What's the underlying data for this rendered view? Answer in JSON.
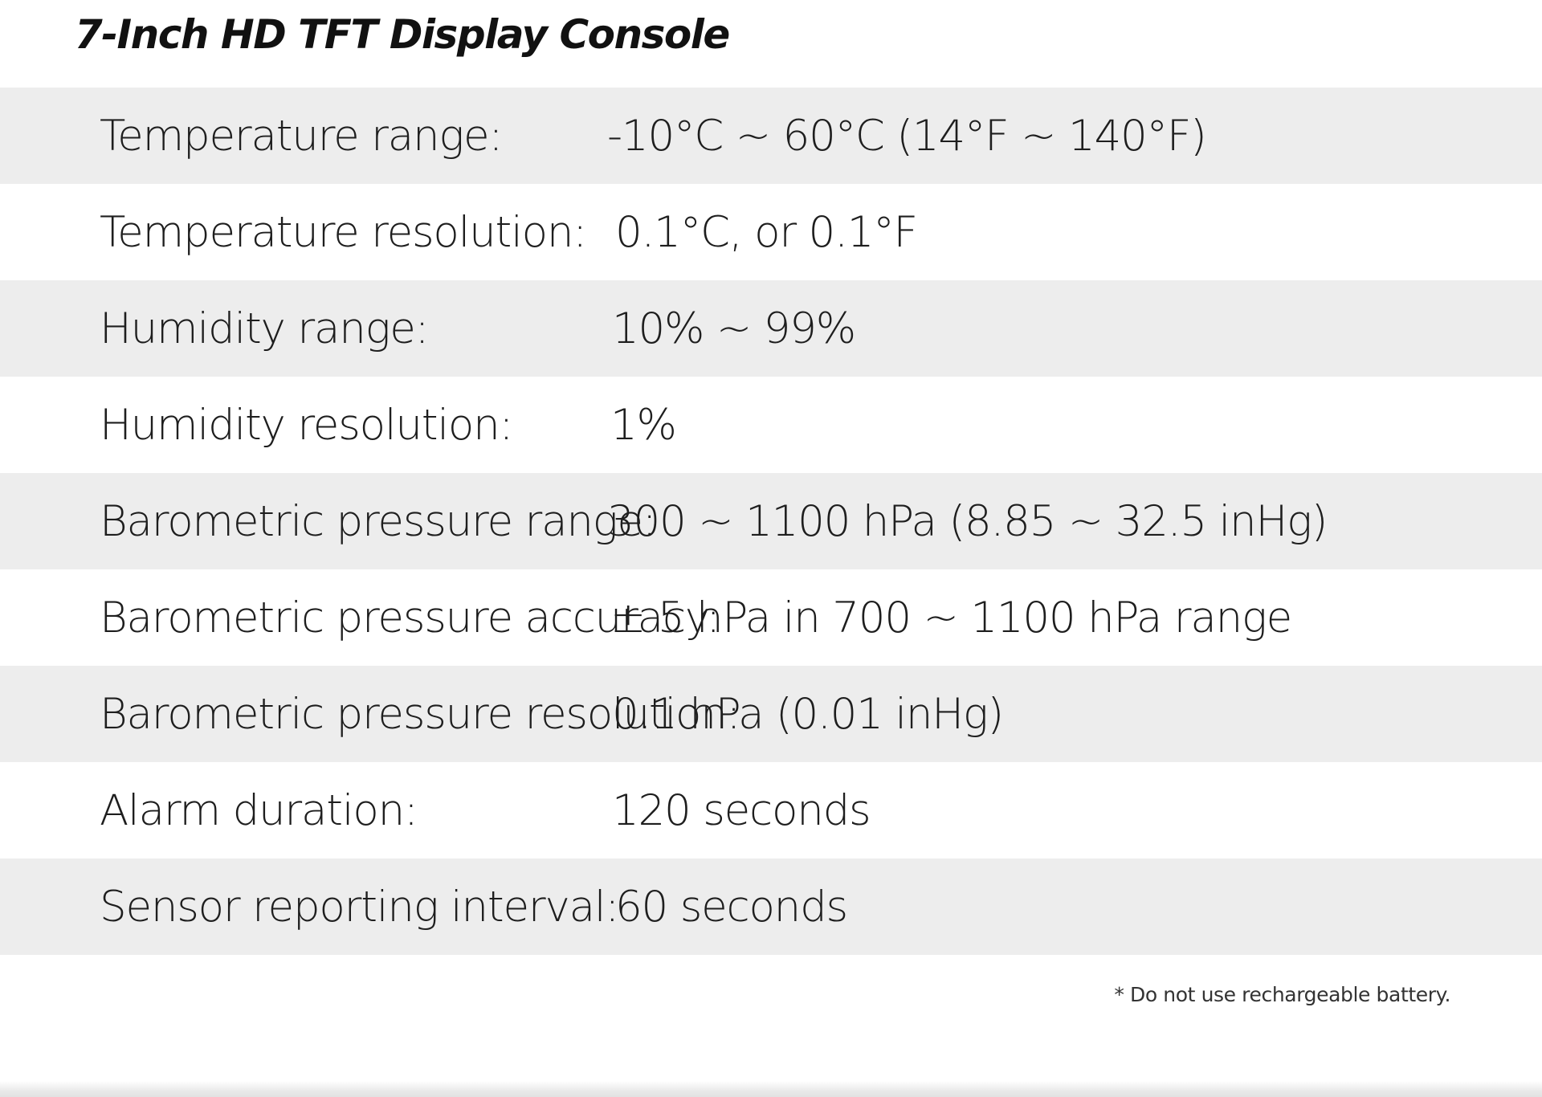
{
  "title": "7-Inch HD TFT Display Console",
  "specs": [
    {
      "label": "Temperature range:",
      "value": "-10°C ~ 60°C (14°F ~ 140°F)"
    },
    {
      "label": "Temperature resolution:",
      "value": "0.1°C, or 0.1°F"
    },
    {
      "label": "Humidity range:",
      "value": "10% ~ 99%"
    },
    {
      "label": "Humidity resolution:",
      "value": "1%"
    },
    {
      "label": "Barometric pressure range:",
      "value": "300 ~ 1100 hPa (8.85 ~ 32.5 inHg)"
    },
    {
      "label": "Barometric pressure accuracy:",
      "value": "± 5 hPa in 700 ~ 1100 hPa range"
    },
    {
      "label": "Barometric pressure resolution:",
      "value": "0.1 hPa (0.01 inHg)"
    },
    {
      "label": "Alarm duration:",
      "value": "120 seconds"
    },
    {
      "label": "Sensor reporting interval:",
      "value": "60 seconds"
    }
  ],
  "footnote": "* Do not use rechargeable battery.",
  "colors": {
    "row_shade": "#ededed",
    "background": "#ffffff",
    "text": "#1e1e1e"
  }
}
